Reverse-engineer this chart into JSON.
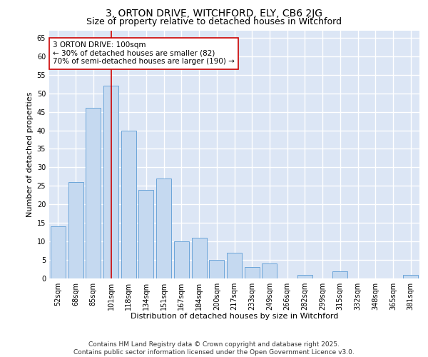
{
  "title_line1": "3, ORTON DRIVE, WITCHFORD, ELY, CB6 2JG",
  "title_line2": "Size of property relative to detached houses in Witchford",
  "xlabel": "Distribution of detached houses by size in Witchford",
  "ylabel": "Number of detached properties",
  "categories": [
    "52sqm",
    "68sqm",
    "85sqm",
    "101sqm",
    "118sqm",
    "134sqm",
    "151sqm",
    "167sqm",
    "184sqm",
    "200sqm",
    "217sqm",
    "233sqm",
    "249sqm",
    "266sqm",
    "282sqm",
    "299sqm",
    "315sqm",
    "332sqm",
    "348sqm",
    "365sqm",
    "381sqm"
  ],
  "values": [
    14,
    26,
    46,
    52,
    40,
    24,
    27,
    10,
    11,
    5,
    7,
    3,
    4,
    0,
    1,
    0,
    2,
    0,
    0,
    0,
    1
  ],
  "bar_color": "#c5d9f0",
  "bar_edge_color": "#5b9bd5",
  "highlight_bar_index": 3,
  "highlight_line_color": "#cc0000",
  "annotation_text": "3 ORTON DRIVE: 100sqm\n← 30% of detached houses are smaller (82)\n70% of semi-detached houses are larger (190) →",
  "annotation_box_color": "#ffffff",
  "annotation_box_edge": "#cc0000",
  "ylim": [
    0,
    67
  ],
  "yticks": [
    0,
    5,
    10,
    15,
    20,
    25,
    30,
    35,
    40,
    45,
    50,
    55,
    60,
    65
  ],
  "background_color": "#dce6f5",
  "grid_color": "#ffffff",
  "fig_background": "#ffffff",
  "footer_text": "Contains HM Land Registry data © Crown copyright and database right 2025.\nContains public sector information licensed under the Open Government Licence v3.0.",
  "title_fontsize": 10,
  "subtitle_fontsize": 9,
  "axis_label_fontsize": 8,
  "tick_fontsize": 7,
  "annotation_fontsize": 7.5,
  "footer_fontsize": 6.5
}
